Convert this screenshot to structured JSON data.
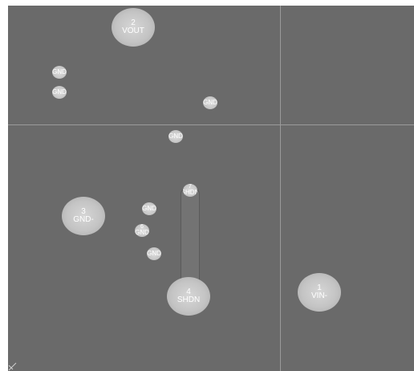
{
  "pads": {
    "vout": {
      "number": "2",
      "label": "VOUT"
    },
    "gnd_minus": {
      "number": "3",
      "label": "GND-"
    },
    "shdn": {
      "number": "4",
      "label": "SHDN"
    },
    "vin_minus": {
      "number": "1",
      "label": "VIN-"
    },
    "shdn_small": {
      "number": "7",
      "label": "SHDN"
    },
    "gnd_small_6": {
      "number": "6",
      "label": "GND"
    },
    "gnd_a": {
      "label": "GND"
    },
    "gnd_b": {
      "label": "GND"
    },
    "gnd_c": {
      "label": "GND"
    },
    "gnd_d": {
      "label": "GND"
    },
    "gnd_e": {
      "label": "GND"
    },
    "gnd_f": {
      "label": "GND"
    }
  },
  "colors": {
    "board_background": "#6a6a6a",
    "grid_line": "#9a9a9a",
    "pad_fill": "#c8c8c8",
    "pad_text": "#ffffff"
  },
  "icons": {
    "origin_marker": "origin-cross-icon"
  }
}
